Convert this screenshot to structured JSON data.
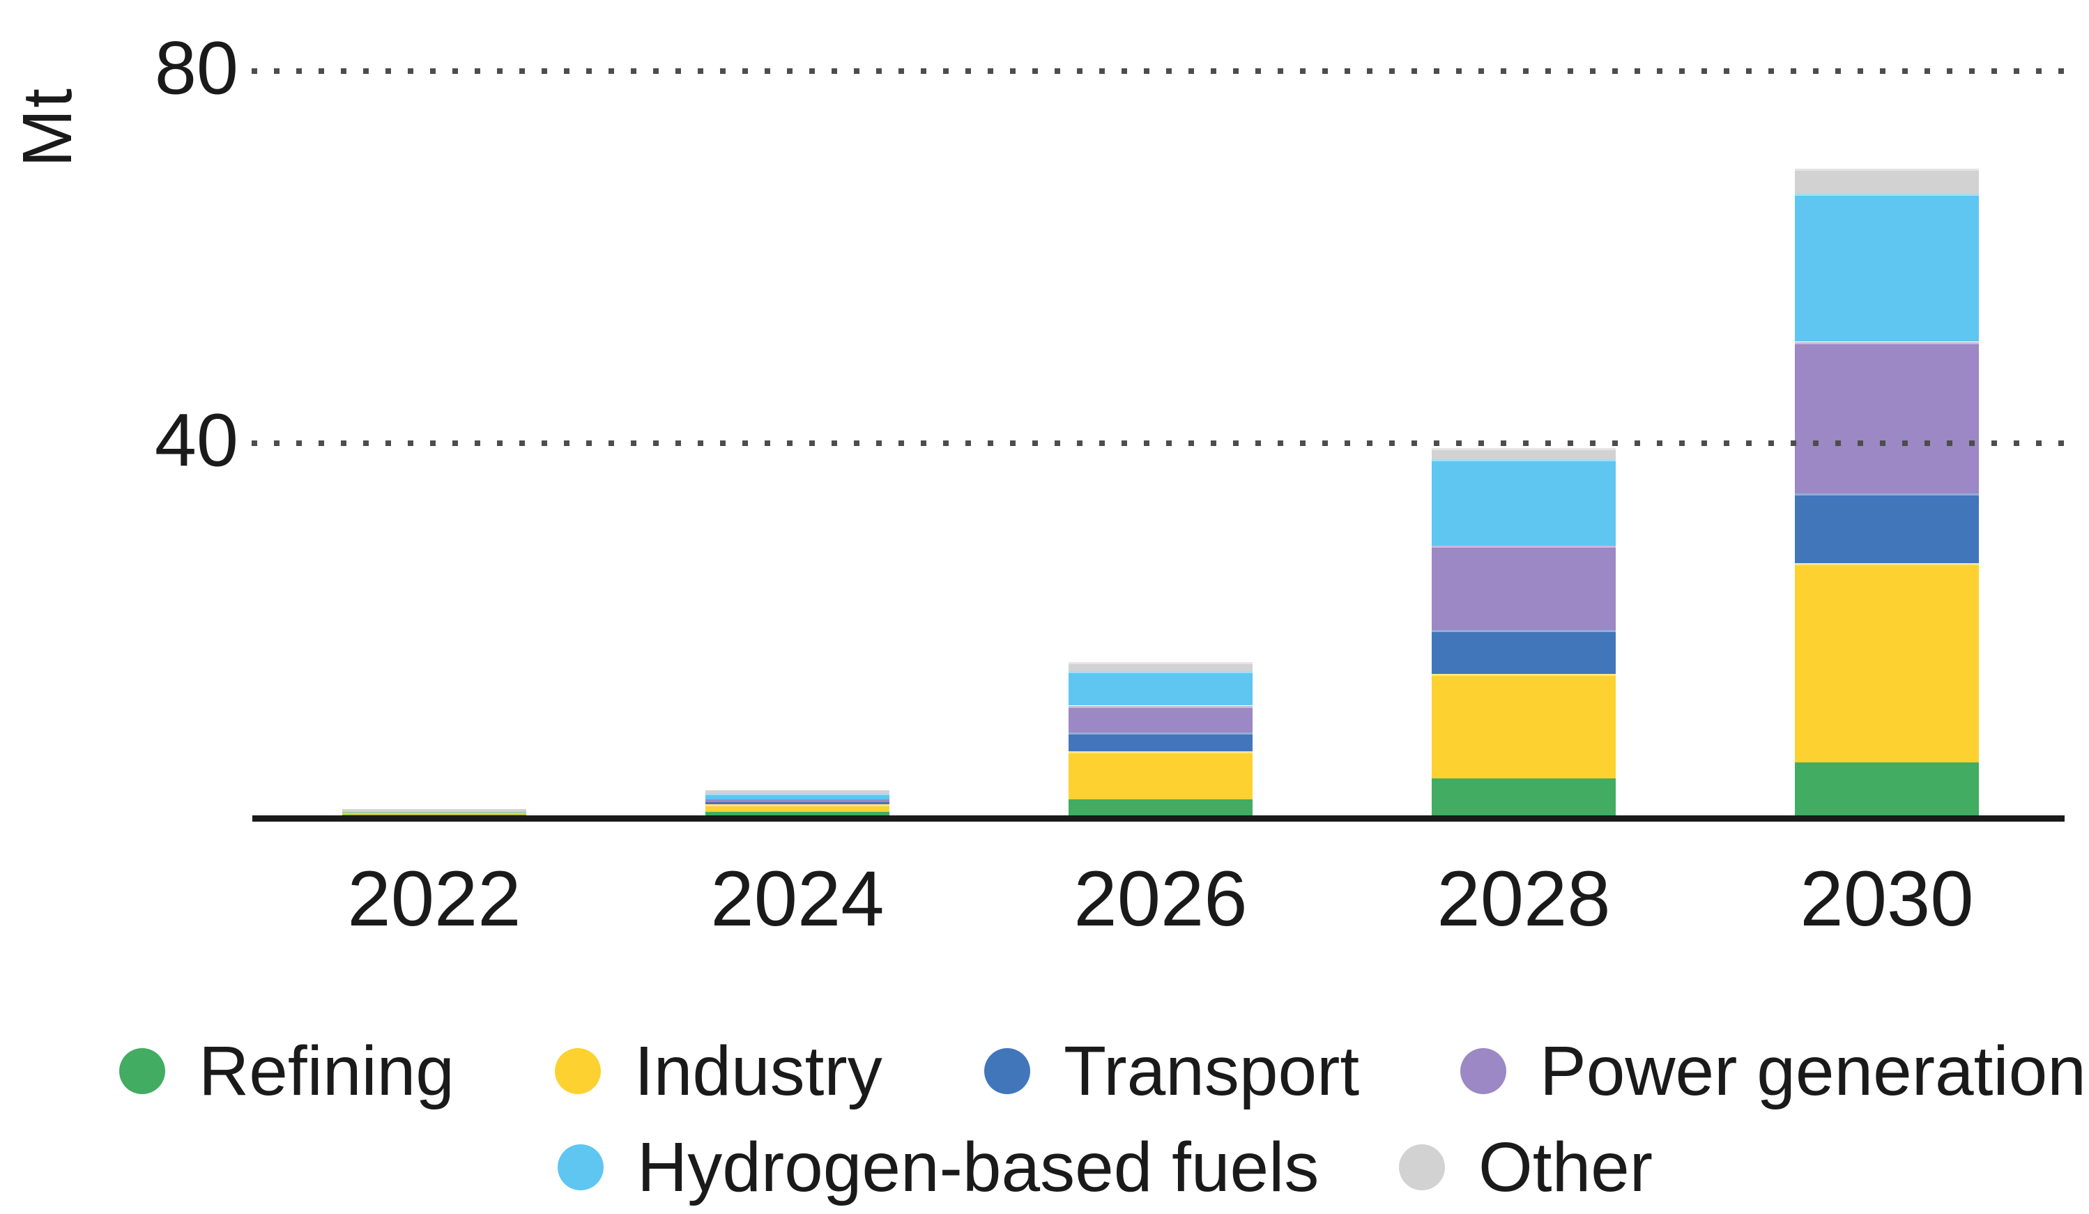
{
  "chart_data": {
    "type": "bar",
    "stacked": true,
    "title": "",
    "unit": "Mt",
    "xlabel": "",
    "ylabel": "Mt",
    "ylim": [
      0,
      80
    ],
    "yticks": [
      40,
      80
    ],
    "grid": "dotted-horizontal",
    "legend_position": "bottom",
    "categories": [
      "2022",
      "2024",
      "2026",
      "2028",
      "2030"
    ],
    "series": [
      {
        "name": "Refining",
        "color": "#41AC62",
        "values": [
          0.05,
          0.4,
          1.7,
          4.0,
          5.7
        ]
      },
      {
        "name": "Industry",
        "color": "#FDD230",
        "values": [
          0.3,
          0.8,
          5.2,
          11.2,
          21.4
        ]
      },
      {
        "name": "Transport",
        "color": "#4276BA",
        "values": [
          0,
          0.25,
          2.0,
          4.7,
          7.5
        ]
      },
      {
        "name": "Power generation",
        "color": "#9C88C4",
        "values": [
          0,
          0.25,
          2.9,
          9.1,
          16.3
        ]
      },
      {
        "name": "Hydrogen-based fuels",
        "color": "#5EC6F0",
        "values": [
          0.05,
          0.7,
          3.7,
          9.3,
          15.9
        ]
      },
      {
        "name": "Other",
        "color": "#D2D2D2",
        "values": [
          0.3,
          0.3,
          1.0,
          1.2,
          2.7
        ]
      }
    ],
    "totals": [
      0.7,
      2.7,
      16.5,
      39.5,
      69.5
    ],
    "legend_rows": [
      [
        "Refining",
        "Industry",
        "Transport",
        "Power generation"
      ],
      [
        "Hydrogen-based fuels",
        "Other"
      ]
    ]
  },
  "colors": {
    "text": "#1a1a1a",
    "axis": "#1a1a1a",
    "grid_dots": "#4d4d4d"
  }
}
